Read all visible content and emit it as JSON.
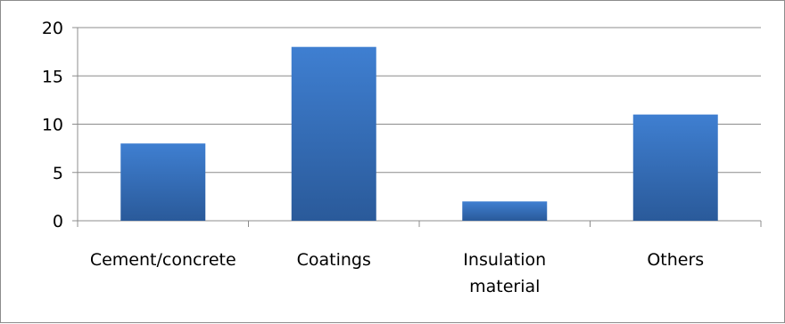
{
  "chart_data": {
    "type": "bar",
    "title": "",
    "xlabel": "",
    "ylabel": "",
    "categories": [
      "Cement/concrete",
      "Coatings",
      "Insulation material",
      "Others"
    ],
    "category_label_lines": [
      [
        "Cement/concrete"
      ],
      [
        "Coatings"
      ],
      [
        "Insulation",
        "material"
      ],
      [
        "Others"
      ]
    ],
    "values": [
      8,
      18,
      2,
      11
    ],
    "ylim": [
      0,
      20
    ],
    "yticks": [
      0,
      5,
      10,
      15,
      20
    ],
    "grid": true,
    "legend": "none",
    "bar_color_top": "#3f7fd1",
    "bar_color_bottom": "#2a5a9a",
    "grid_color": "#8c8c8c"
  }
}
